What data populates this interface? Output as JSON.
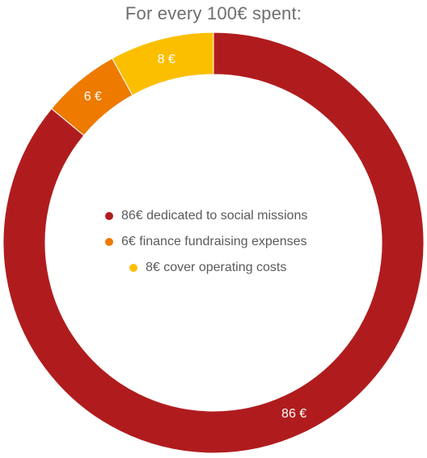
{
  "chart_data": {
    "type": "pie",
    "title": "For every 100€ spent:",
    "categories": [
      "86€ dedicated to social missions",
      "6€ finance fundraising expenses",
      "8€ cover operating costs"
    ],
    "values": [
      86,
      6,
      8
    ],
    "data_labels": [
      "86  €",
      "6  €",
      "8  €"
    ],
    "colors": [
      "#b01c1e",
      "#ee7a00",
      "#fbbf00"
    ],
    "donut": true,
    "legend_placement": "center"
  }
}
